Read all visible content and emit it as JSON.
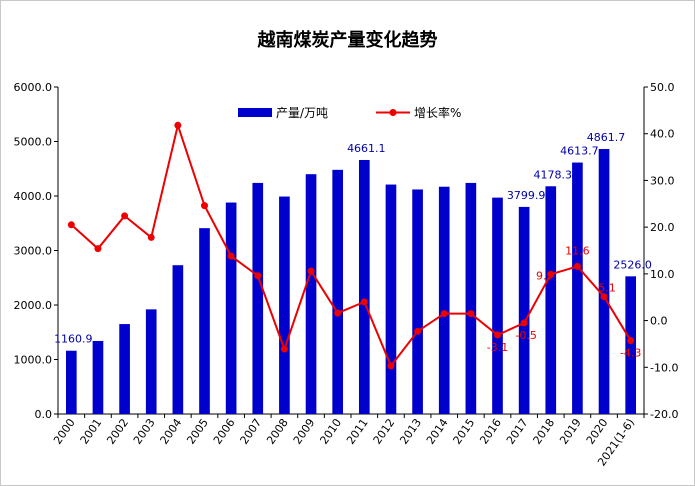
{
  "chart_data": {
    "type": "bar",
    "title": "越南煤炭产量变化趋势",
    "categories": [
      "2000",
      "2001",
      "2002",
      "2003",
      "2004",
      "2005",
      "2006",
      "2007",
      "2008",
      "2009",
      "2010",
      "2011",
      "2012",
      "2013",
      "2014",
      "2015",
      "2016",
      "2017",
      "2018",
      "2019",
      "2020",
      "2021(1-6)"
    ],
    "series": [
      {
        "name": "产量/万吨",
        "type": "bar",
        "axis": "left",
        "color": "#0000cc",
        "values": [
          1160.9,
          1340,
          1650,
          1920,
          2730,
          3410,
          3880,
          4240,
          3990,
          4400,
          4480,
          4661.1,
          4210,
          4120,
          4170,
          4240,
          3970,
          3799.9,
          4178.3,
          4613.7,
          4861.7,
          2526.0
        ]
      },
      {
        "name": "增长率%",
        "type": "line",
        "axis": "right",
        "color": "#ee0000",
        "values": [
          20.5,
          15.4,
          22.4,
          17.8,
          41.8,
          24.6,
          13.8,
          9.6,
          -6.1,
          10.6,
          1.6,
          4.0,
          -9.7,
          -2.3,
          1.5,
          1.5,
          -3.1,
          -0.5,
          9.9,
          11.6,
          5.1,
          -4.3
        ]
      }
    ],
    "ylim_left": [
      0,
      6000
    ],
    "ylim_right": [
      -20,
      50
    ],
    "yticks_left": [
      "0.0",
      "1000.0",
      "2000.0",
      "3000.0",
      "4000.0",
      "5000.0",
      "6000.0"
    ],
    "yticks_right": [
      "-20.0",
      "-10.0",
      "0.0",
      "10.0",
      "20.0",
      "30.0",
      "40.0",
      "50.0"
    ],
    "bar_labels": [
      {
        "index": 0,
        "text": "1160.9"
      },
      {
        "index": 11,
        "text": "4661.1"
      },
      {
        "index": 17,
        "text": "3799.9"
      },
      {
        "index": 18,
        "text": "4178.3"
      },
      {
        "index": 19,
        "text": "4613.7"
      },
      {
        "index": 20,
        "text": "4861.7"
      },
      {
        "index": 21,
        "text": "2526.0"
      }
    ],
    "line_labels": [
      {
        "index": 16,
        "text": "-3.1"
      },
      {
        "index": 17,
        "text": "-0.5"
      },
      {
        "index": 18,
        "text": "9.9"
      },
      {
        "index": 19,
        "text": "11.6"
      },
      {
        "index": 20,
        "text": "5.1"
      },
      {
        "index": 21,
        "text": "-4.3"
      }
    ],
    "legend_position": "top-center",
    "grid": false
  }
}
